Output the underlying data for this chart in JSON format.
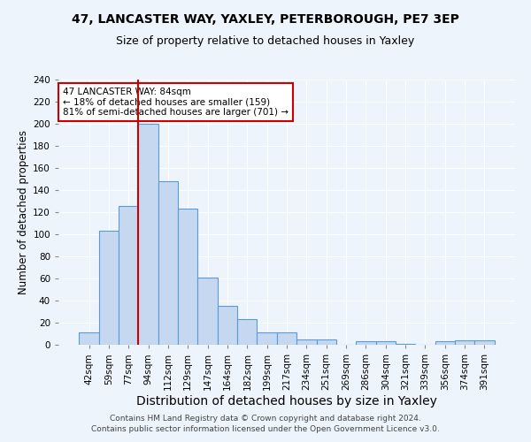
{
  "title1": "47, LANCASTER WAY, YAXLEY, PETERBOROUGH, PE7 3EP",
  "title2": "Size of property relative to detached houses in Yaxley",
  "xlabel": "Distribution of detached houses by size in Yaxley",
  "ylabel": "Number of detached properties",
  "footer": "Contains HM Land Registry data © Crown copyright and database right 2024.\nContains public sector information licensed under the Open Government Licence v3.0.",
  "bar_labels": [
    "42sqm",
    "59sqm",
    "77sqm",
    "94sqm",
    "112sqm",
    "129sqm",
    "147sqm",
    "164sqm",
    "182sqm",
    "199sqm",
    "217sqm",
    "234sqm",
    "251sqm",
    "269sqm",
    "286sqm",
    "304sqm",
    "321sqm",
    "339sqm",
    "356sqm",
    "374sqm",
    "391sqm"
  ],
  "bar_values": [
    11,
    103,
    126,
    200,
    148,
    123,
    61,
    35,
    23,
    11,
    11,
    5,
    5,
    0,
    3,
    3,
    1,
    0,
    3,
    4,
    4
  ],
  "bar_color": "#c5d8f0",
  "bar_edge_color": "#5b9bd5",
  "vline_x_index": 2,
  "vline_color": "#cc0000",
  "annotation_text": "47 LANCASTER WAY: 84sqm\n← 18% of detached houses are smaller (159)\n81% of semi-detached houses are larger (701) →",
  "annotation_box_color": "white",
  "annotation_box_edge_color": "#cc0000",
  "ylim": [
    0,
    240
  ],
  "yticks": [
    0,
    20,
    40,
    60,
    80,
    100,
    120,
    140,
    160,
    180,
    200,
    220,
    240
  ],
  "bg_color": "#eef4fc",
  "grid_color": "#ffffff",
  "title1_fontsize": 10,
  "title2_fontsize": 9,
  "xlabel_fontsize": 10,
  "ylabel_fontsize": 8.5,
  "tick_fontsize": 7.5,
  "footer_fontsize": 6.5,
  "annot_fontsize": 7.5
}
